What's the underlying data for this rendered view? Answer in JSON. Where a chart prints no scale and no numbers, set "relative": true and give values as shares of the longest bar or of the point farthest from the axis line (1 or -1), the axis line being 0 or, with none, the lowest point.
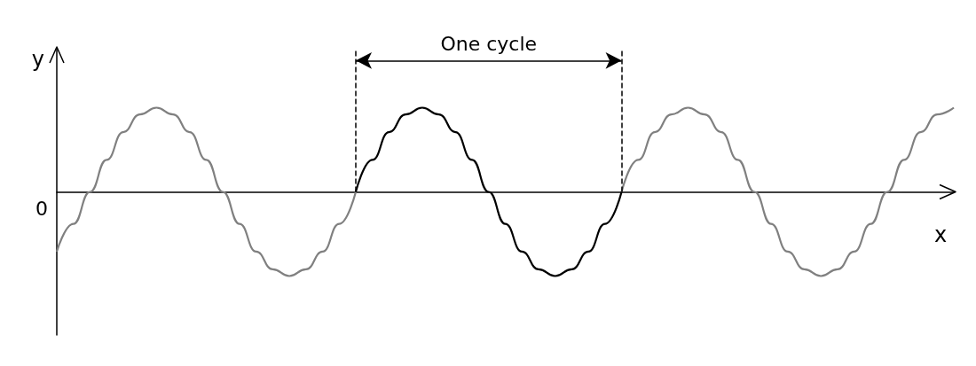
{
  "chart_data": {
    "type": "line",
    "relative": true,
    "xlabel": "x",
    "ylabel": "y",
    "marker": "none",
    "annotations": [
      "0",
      "One cycle"
    ],
    "categories": [
      null,
      null,
      null,
      null,
      null,
      null,
      null,
      null,
      null,
      null,
      null,
      null,
      null,
      null,
      null,
      null,
      null,
      null,
      null,
      null,
      null,
      null,
      null,
      null,
      null,
      null,
      null,
      null,
      null,
      null,
      null,
      null,
      null,
      null,
      null,
      null,
      null,
      null,
      null,
      null,
      null,
      null,
      null,
      null,
      null,
      null,
      null,
      null,
      null,
      null,
      null,
      null,
      null,
      null,
      null
    ],
    "series": [
      {
        "color": "#808080",
        "values": [
          -0.71,
          -0.38,
          0,
          0.38,
          0.71,
          0.92,
          1,
          0.92,
          0.71,
          0.38,
          0,
          -0.38,
          -0.71,
          -0.92,
          -1,
          -0.92,
          -0.71,
          -0.38,
          0,
          null,
          null,
          null,
          null,
          null,
          null,
          null,
          null,
          null,
          null,
          null,
          null,
          null,
          null,
          null,
          0,
          0.38,
          0.71,
          0.92,
          1,
          0.92,
          0.71,
          0.38,
          0,
          -0.38,
          -0.71,
          -0.92,
          -1,
          -0.92,
          -0.71,
          -0.38,
          0,
          0.38,
          0.71,
          0.92,
          1
        ]
      },
      {
        "color": "#000000",
        "values": [
          null,
          null,
          null,
          null,
          null,
          null,
          null,
          null,
          null,
          null,
          null,
          null,
          null,
          null,
          null,
          null,
          null,
          null,
          0,
          0.38,
          0.71,
          0.92,
          1,
          0.92,
          0.71,
          0.38,
          0,
          -0.38,
          -0.71,
          -0.92,
          -1,
          -0.92,
          -0.71,
          -0.38,
          0,
          null,
          null,
          null,
          null,
          null,
          null,
          null,
          null,
          null,
          null,
          null,
          null,
          null,
          null,
          null,
          null,
          null,
          null,
          null,
          null
        ]
      }
    ]
  }
}
